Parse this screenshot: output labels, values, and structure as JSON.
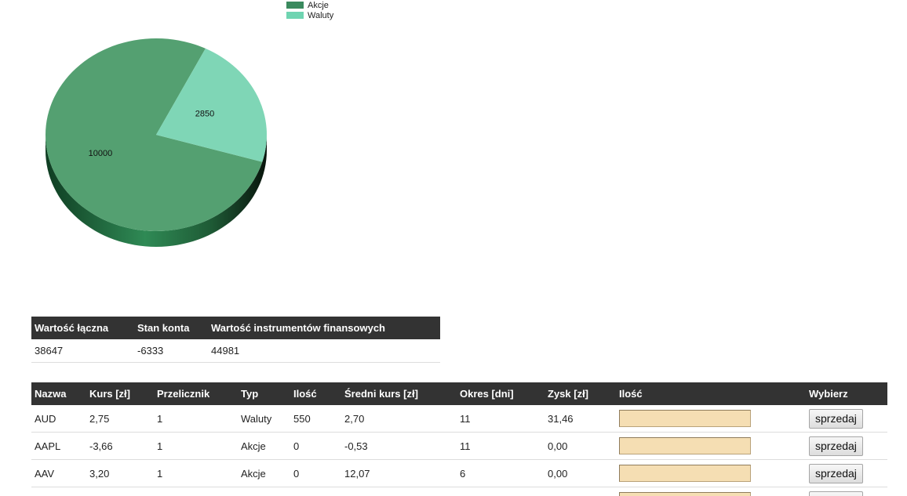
{
  "chart_data": {
    "type": "pie",
    "title": "",
    "legend_position": "top-center",
    "colors": [
      "#54a071",
      "#7fd6b6"
    ],
    "legend_colors": [
      "#3a8a5e",
      "#6fd4b1"
    ],
    "side_color": "#1e5a35",
    "series": [
      {
        "name": "Akcje",
        "value": 10000,
        "label": "10000"
      },
      {
        "name": "Waluty",
        "value": 2850,
        "label": "2850"
      }
    ]
  },
  "summary": {
    "headers": [
      "Wartość łączna",
      "Stan konta",
      "Wartość instrumentów finansowych"
    ],
    "values": [
      "38647",
      "-6333",
      "44981"
    ]
  },
  "holdings": {
    "headers": [
      "Nazwa",
      "Kurs [zł]",
      "Przelicznik",
      "Typ",
      "Ilość",
      "Średni kurs [zł]",
      "Okres [dni]",
      "Zysk [zł]",
      "Ilość",
      "Wybierz"
    ],
    "sell_label": "sprzedaj",
    "rows": [
      [
        "AUD",
        "2,75",
        "1",
        "Waluty",
        "550",
        "2,70",
        "11",
        "31,46"
      ],
      [
        "AAPL",
        "-3,66",
        "1",
        "Akcje",
        "0",
        "-0,53",
        "11",
        "0,00"
      ],
      [
        "AAV",
        "3,20",
        "1",
        "Akcje",
        "0",
        "12,07",
        "6",
        "0,00"
      ],
      [
        "",
        "",
        "",
        "",
        "",
        "",
        "",
        ""
      ]
    ]
  }
}
